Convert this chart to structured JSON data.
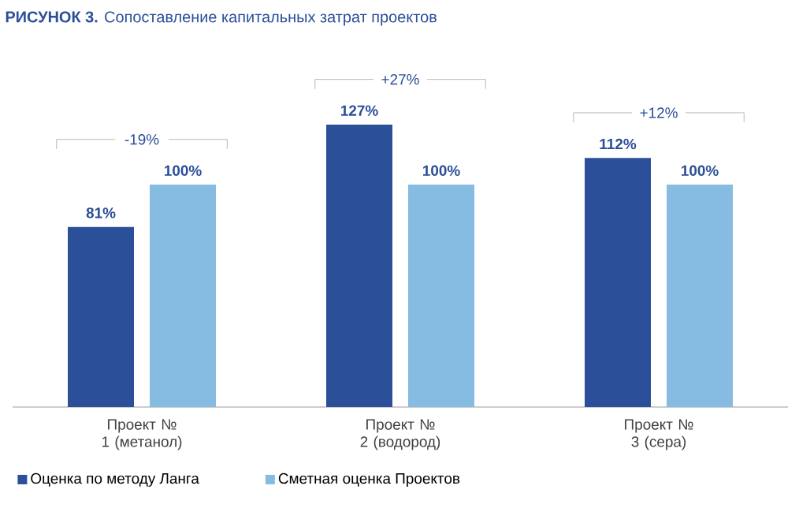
{
  "chart_data": {
    "type": "bar",
    "title": "**РИСУНОК 3.** Сопоставление капитальных затрат проектов",
    "categories": [
      "Проект № 1 (метанол)",
      "Проект № 2 (водород)",
      "Проект № 3 (сера)"
    ],
    "series": [
      {
        "name": "Оценка по методу Ланга",
        "color": "#2b4f98",
        "values": [
          81,
          127,
          112
        ],
        "value_labels": [
          "81%",
          "127%",
          "112%"
        ]
      },
      {
        "name": "Сметная оценка Проектов",
        "color": "#86bbe2",
        "values": [
          100,
          100,
          100
        ],
        "value_labels": [
          "100%",
          "100%",
          "100%"
        ]
      }
    ],
    "annotations": [
      "-19%",
      "+27%",
      "+12%"
    ],
    "legend": "bottom left"
  }
}
